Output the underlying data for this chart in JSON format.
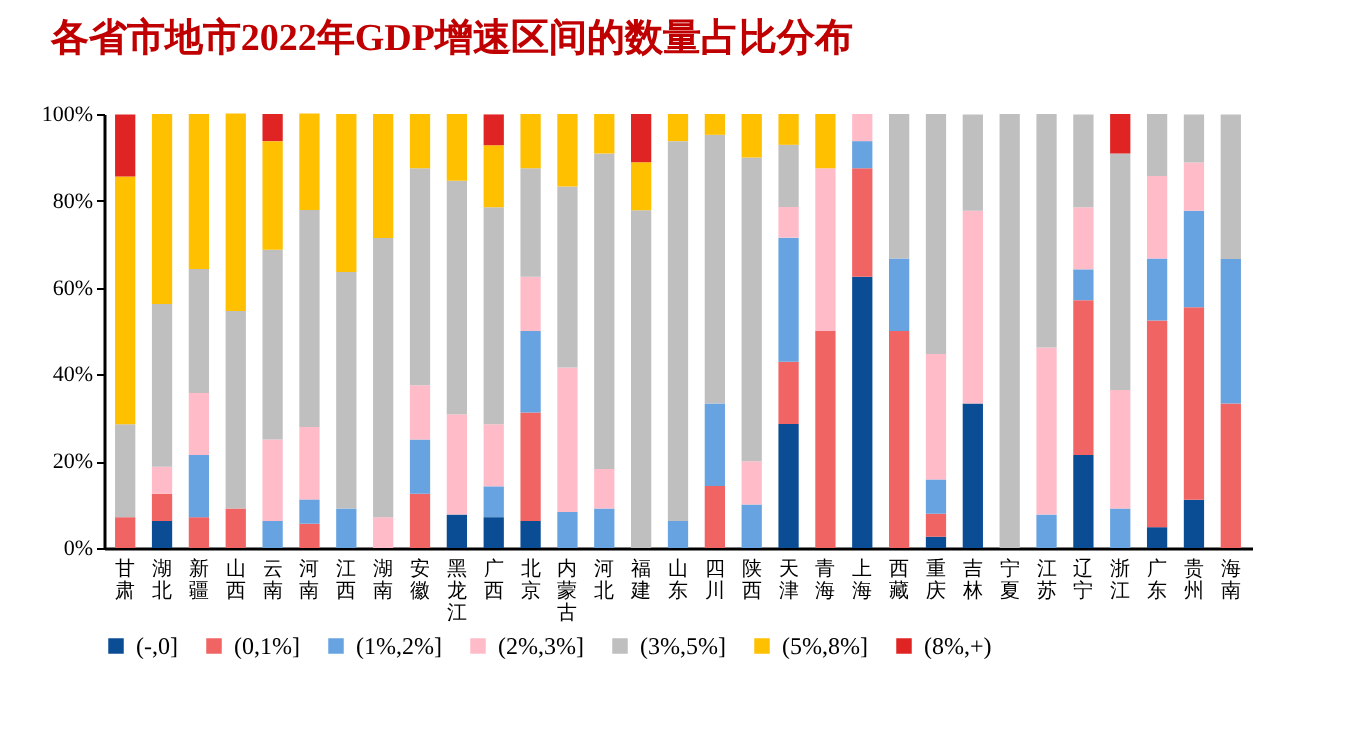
{
  "chart_data": {
    "type": "bar",
    "stacked": true,
    "title": "各省市地市2022年GDP增速区间的数量占比分布",
    "categories": [
      "甘肃",
      "湖北",
      "新疆",
      "山西",
      "云南",
      "河南",
      "江西",
      "湖南",
      "安徽",
      "黑龙江",
      "广西",
      "北京",
      "内蒙古",
      "河北",
      "福建",
      "山东",
      "四川",
      "陕西",
      "天津",
      "青海",
      "上海",
      "西藏",
      "重庆",
      "吉林",
      "宁夏",
      "江苏",
      "辽宁",
      "浙江",
      "广东",
      "贵州",
      "海南"
    ],
    "ylim": [
      0,
      100
    ],
    "yticks": [
      {
        "value": 0,
        "label": "0%"
      },
      {
        "value": 20,
        "label": "20%"
      },
      {
        "value": 40,
        "label": "40%"
      },
      {
        "value": 60,
        "label": "60%"
      },
      {
        "value": 80,
        "label": "80%"
      },
      {
        "value": 100,
        "label": "100%"
      }
    ],
    "grid": false,
    "legend": "bottom",
    "series": [
      {
        "name": "(-,0]",
        "color": "#0b4d94",
        "values": [
          null,
          6.25,
          null,
          null,
          null,
          null,
          null,
          null,
          null,
          7.7,
          7.1,
          6.25,
          null,
          null,
          null,
          null,
          null,
          null,
          28.6,
          null,
          62.5,
          null,
          2.6,
          33.3,
          null,
          null,
          21.4,
          null,
          4.8,
          11.1,
          null
        ]
      },
      {
        "name": "(0,1%]",
        "color": "#f06464",
        "values": [
          7.1,
          6.25,
          7.1,
          9.1,
          null,
          5.6,
          null,
          null,
          12.5,
          null,
          null,
          25,
          null,
          null,
          null,
          null,
          14.3,
          null,
          14.3,
          50,
          25,
          50,
          5.3,
          null,
          null,
          null,
          35.7,
          null,
          47.6,
          44.4,
          33.3
        ]
      },
      {
        "name": "(1%,2%]",
        "color": "#66a3e0",
        "values": [
          null,
          null,
          14.3,
          null,
          6.25,
          5.6,
          9.1,
          null,
          12.5,
          null,
          7.1,
          18.75,
          8.3,
          9.1,
          null,
          6.25,
          19,
          10,
          28.6,
          null,
          6.25,
          16.7,
          7.9,
          null,
          null,
          7.7,
          7.1,
          9.1,
          14.3,
          22.2,
          33.3
        ]
      },
      {
        "name": "(2%,3%]",
        "color": "#ffbcc8",
        "values": [
          null,
          6.25,
          14.3,
          null,
          18.75,
          16.7,
          null,
          7.1,
          12.5,
          23.1,
          14.3,
          12.5,
          33.3,
          9.1,
          null,
          null,
          null,
          10,
          7.1,
          37.5,
          6.25,
          null,
          28.9,
          44.4,
          null,
          38.5,
          14.3,
          27.3,
          19,
          11.1,
          null
        ]
      },
      {
        "name": "(3%,5%]",
        "color": "#bfbfbf",
        "values": [
          21.4,
          37.5,
          28.6,
          45.5,
          43.75,
          50,
          54.5,
          64.3,
          50,
          53.8,
          50,
          25,
          41.7,
          72.7,
          77.8,
          87.5,
          61.9,
          70,
          14.3,
          null,
          null,
          33.3,
          55.3,
          22.2,
          100,
          53.8,
          21.4,
          54.5,
          14.3,
          11.1,
          33.3
        ]
      },
      {
        "name": "(5%,8%]",
        "color": "#ffc000",
        "values": [
          57.1,
          43.75,
          35.7,
          45.5,
          25,
          22.2,
          36.4,
          28.6,
          12.5,
          15.4,
          14.3,
          12.5,
          16.7,
          9.1,
          11.1,
          6.25,
          4.8,
          10,
          7.1,
          12.5,
          null,
          null,
          null,
          null,
          null,
          null,
          null,
          null,
          null,
          null,
          null
        ]
      },
      {
        "name": "(8%,+)",
        "color": "#e02424",
        "values": [
          14.3,
          null,
          null,
          null,
          6.25,
          null,
          null,
          null,
          null,
          null,
          7.1,
          null,
          null,
          null,
          11.1,
          null,
          null,
          null,
          null,
          null,
          null,
          null,
          null,
          null,
          null,
          null,
          null,
          9.1,
          null,
          null,
          null
        ]
      }
    ]
  }
}
